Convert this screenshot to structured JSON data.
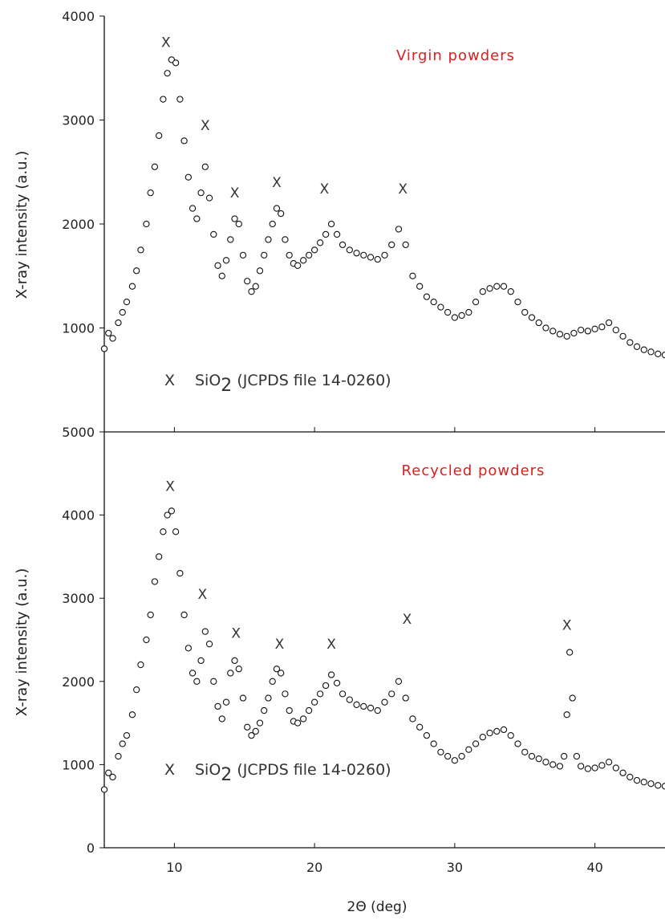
{
  "chart_data": [
    {
      "type": "scatter",
      "title": "Virgin powders",
      "title_color": "#d92020",
      "ylabel": "X-ray intensity (a.u.)",
      "xlabel": "",
      "xlim": [
        5,
        45
      ],
      "ylim": [
        0,
        4000
      ],
      "yticks": [
        1000,
        2000,
        3000,
        4000
      ],
      "ytick_labels": [
        "1000",
        "2000",
        "3000",
        "4000"
      ],
      "xticks": [
        10,
        20,
        30,
        40
      ],
      "xtick_labels": [],
      "grid": false,
      "marker": "open-circle",
      "annotation": {
        "marker": "X",
        "text_prefix": "SiO",
        "subscript": "2",
        "text_suffix": " (JCPDS file 14-0260)"
      },
      "peak_markers": [
        {
          "x": 9.4,
          "y": 3750
        },
        {
          "x": 12.2,
          "y": 2950
        },
        {
          "x": 14.3,
          "y": 2300
        },
        {
          "x": 17.3,
          "y": 2400
        },
        {
          "x": 20.7,
          "y": 2340
        },
        {
          "x": 26.3,
          "y": 2340
        }
      ],
      "series": [
        {
          "values": [
            [
              5,
              800
            ],
            [
              5.3,
              950
            ],
            [
              5.6,
              900
            ],
            [
              6,
              1050
            ],
            [
              6.3,
              1150
            ],
            [
              6.6,
              1250
            ],
            [
              7,
              1400
            ],
            [
              7.3,
              1550
            ],
            [
              7.6,
              1750
            ],
            [
              8,
              2000
            ],
            [
              8.3,
              2300
            ],
            [
              8.6,
              2550
            ],
            [
              8.9,
              2850
            ],
            [
              9.2,
              3200
            ],
            [
              9.5,
              3450
            ],
            [
              9.8,
              3580
            ],
            [
              10.1,
              3550
            ],
            [
              10.4,
              3200
            ],
            [
              10.7,
              2800
            ],
            [
              11,
              2450
            ],
            [
              11.3,
              2150
            ],
            [
              11.6,
              2050
            ],
            [
              11.9,
              2300
            ],
            [
              12.2,
              2550
            ],
            [
              12.5,
              2250
            ],
            [
              12.8,
              1900
            ],
            [
              13.1,
              1600
            ],
            [
              13.4,
              1500
            ],
            [
              13.7,
              1650
            ],
            [
              14,
              1850
            ],
            [
              14.3,
              2050
            ],
            [
              14.6,
              2000
            ],
            [
              14.9,
              1700
            ],
            [
              15.2,
              1450
            ],
            [
              15.5,
              1350
            ],
            [
              15.8,
              1400
            ],
            [
              16.1,
              1550
            ],
            [
              16.4,
              1700
            ],
            [
              16.7,
              1850
            ],
            [
              17,
              2000
            ],
            [
              17.3,
              2150
            ],
            [
              17.6,
              2100
            ],
            [
              17.9,
              1850
            ],
            [
              18.2,
              1700
            ],
            [
              18.5,
              1620
            ],
            [
              18.8,
              1600
            ],
            [
              19.2,
              1650
            ],
            [
              19.6,
              1700
            ],
            [
              20,
              1750
            ],
            [
              20.4,
              1820
            ],
            [
              20.8,
              1900
            ],
            [
              21.2,
              2000
            ],
            [
              21.6,
              1900
            ],
            [
              22,
              1800
            ],
            [
              22.5,
              1750
            ],
            [
              23,
              1720
            ],
            [
              23.5,
              1700
            ],
            [
              24,
              1680
            ],
            [
              24.5,
              1660
            ],
            [
              25,
              1700
            ],
            [
              25.5,
              1800
            ],
            [
              26,
              1950
            ],
            [
              26.5,
              1800
            ],
            [
              27,
              1500
            ],
            [
              27.5,
              1400
            ],
            [
              28,
              1300
            ],
            [
              28.5,
              1250
            ],
            [
              29,
              1200
            ],
            [
              29.5,
              1150
            ],
            [
              30,
              1100
            ],
            [
              30.5,
              1120
            ],
            [
              31,
              1150
            ],
            [
              31.5,
              1250
            ],
            [
              32,
              1350
            ],
            [
              32.5,
              1380
            ],
            [
              33,
              1400
            ],
            [
              33.5,
              1400
            ],
            [
              34,
              1350
            ],
            [
              34.5,
              1250
            ],
            [
              35,
              1150
            ],
            [
              35.5,
              1100
            ],
            [
              36,
              1050
            ],
            [
              36.5,
              1000
            ],
            [
              37,
              970
            ],
            [
              37.5,
              940
            ],
            [
              38,
              920
            ],
            [
              38.5,
              950
            ],
            [
              39,
              980
            ],
            [
              39.5,
              970
            ],
            [
              40,
              990
            ],
            [
              40.5,
              1010
            ],
            [
              41,
              1050
            ],
            [
              41.5,
              980
            ],
            [
              42,
              920
            ],
            [
              42.5,
              860
            ],
            [
              43,
              820
            ],
            [
              43.5,
              790
            ],
            [
              44,
              770
            ],
            [
              44.5,
              750
            ],
            [
              45,
              740
            ]
          ]
        }
      ]
    },
    {
      "type": "scatter",
      "title": "Recycled powders",
      "title_color": "#d92020",
      "ylabel": "X-ray intensity (a.u.)",
      "xlabel": "2Θ (deg)",
      "xlim": [
        5,
        45
      ],
      "ylim": [
        0,
        5000
      ],
      "yticks": [
        0,
        1000,
        2000,
        3000,
        4000,
        5000
      ],
      "ytick_labels": [
        "0",
        "1000",
        "2000",
        "3000",
        "4000",
        "5000"
      ],
      "xticks": [
        10,
        20,
        30,
        40
      ],
      "xtick_labels": [
        "10",
        "20",
        "30",
        "40"
      ],
      "grid": false,
      "marker": "open-circle",
      "annotation": {
        "marker": "X",
        "text_prefix": "SiO",
        "subscript": "2",
        "text_suffix": " (JCPDS file 14-0260)"
      },
      "peak_markers": [
        {
          "x": 9.7,
          "y": 4350
        },
        {
          "x": 12.0,
          "y": 3050
        },
        {
          "x": 14.4,
          "y": 2580
        },
        {
          "x": 17.5,
          "y": 2450
        },
        {
          "x": 21.2,
          "y": 2450
        },
        {
          "x": 26.6,
          "y": 2750
        },
        {
          "x": 38.0,
          "y": 2680
        }
      ],
      "series": [
        {
          "values": [
            [
              5,
              700
            ],
            [
              5.3,
              900
            ],
            [
              5.6,
              850
            ],
            [
              6,
              1100
            ],
            [
              6.3,
              1250
            ],
            [
              6.6,
              1350
            ],
            [
              7,
              1600
            ],
            [
              7.3,
              1900
            ],
            [
              7.6,
              2200
            ],
            [
              8,
              2500
            ],
            [
              8.3,
              2800
            ],
            [
              8.6,
              3200
            ],
            [
              8.9,
              3500
            ],
            [
              9.2,
              3800
            ],
            [
              9.5,
              4000
            ],
            [
              9.8,
              4050
            ],
            [
              10.1,
              3800
            ],
            [
              10.4,
              3300
            ],
            [
              10.7,
              2800
            ],
            [
              11,
              2400
            ],
            [
              11.3,
              2100
            ],
            [
              11.6,
              2000
            ],
            [
              11.9,
              2250
            ],
            [
              12.2,
              2600
            ],
            [
              12.5,
              2450
            ],
            [
              12.8,
              2000
            ],
            [
              13.1,
              1700
            ],
            [
              13.4,
              1550
            ],
            [
              13.7,
              1750
            ],
            [
              14,
              2100
            ],
            [
              14.3,
              2250
            ],
            [
              14.6,
              2150
            ],
            [
              14.9,
              1800
            ],
            [
              15.2,
              1450
            ],
            [
              15.5,
              1350
            ],
            [
              15.8,
              1400
            ],
            [
              16.1,
              1500
            ],
            [
              16.4,
              1650
            ],
            [
              16.7,
              1800
            ],
            [
              17,
              2000
            ],
            [
              17.3,
              2150
            ],
            [
              17.6,
              2100
            ],
            [
              17.9,
              1850
            ],
            [
              18.2,
              1650
            ],
            [
              18.5,
              1520
            ],
            [
              18.8,
              1500
            ],
            [
              19.2,
              1550
            ],
            [
              19.6,
              1650
            ],
            [
              20,
              1750
            ],
            [
              20.4,
              1850
            ],
            [
              20.8,
              1950
            ],
            [
              21.2,
              2080
            ],
            [
              21.6,
              1980
            ],
            [
              22,
              1850
            ],
            [
              22.5,
              1780
            ],
            [
              23,
              1720
            ],
            [
              23.5,
              1700
            ],
            [
              24,
              1680
            ],
            [
              24.5,
              1650
            ],
            [
              25,
              1750
            ],
            [
              25.5,
              1850
            ],
            [
              26,
              2000
            ],
            [
              26.5,
              1800
            ],
            [
              27,
              1550
            ],
            [
              27.5,
              1450
            ],
            [
              28,
              1350
            ],
            [
              28.5,
              1250
            ],
            [
              29,
              1150
            ],
            [
              29.5,
              1100
            ],
            [
              30,
              1050
            ],
            [
              30.5,
              1100
            ],
            [
              31,
              1180
            ],
            [
              31.5,
              1250
            ],
            [
              32,
              1330
            ],
            [
              32.5,
              1380
            ],
            [
              33,
              1400
            ],
            [
              33.5,
              1420
            ],
            [
              34,
              1350
            ],
            [
              34.5,
              1250
            ],
            [
              35,
              1150
            ],
            [
              35.5,
              1100
            ],
            [
              36,
              1070
            ],
            [
              36.5,
              1030
            ],
            [
              37,
              1000
            ],
            [
              37.5,
              980
            ],
            [
              37.8,
              1100
            ],
            [
              38,
              1600
            ],
            [
              38.2,
              2350
            ],
            [
              38.4,
              1800
            ],
            [
              38.7,
              1100
            ],
            [
              39,
              980
            ],
            [
              39.5,
              950
            ],
            [
              40,
              960
            ],
            [
              40.5,
              990
            ],
            [
              41,
              1030
            ],
            [
              41.5,
              960
            ],
            [
              42,
              900
            ],
            [
              42.5,
              850
            ],
            [
              43,
              810
            ],
            [
              43.5,
              790
            ],
            [
              44,
              770
            ],
            [
              44.5,
              750
            ],
            [
              45,
              740
            ]
          ]
        }
      ]
    }
  ]
}
